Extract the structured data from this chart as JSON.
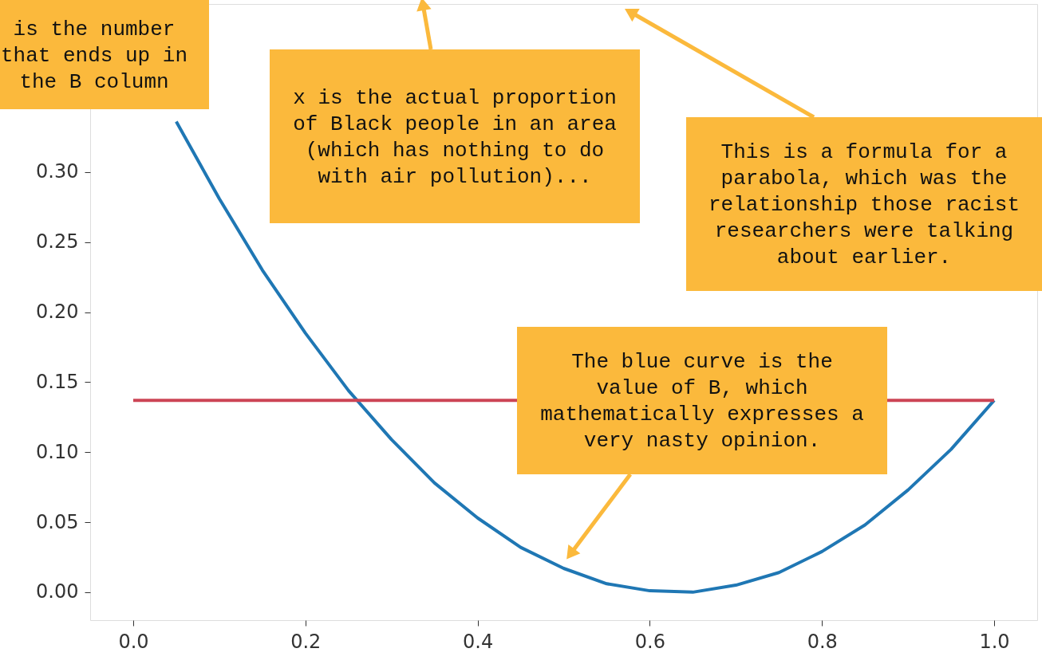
{
  "chart_data": {
    "type": "line",
    "xlim": [
      -0.05,
      1.05
    ],
    "ylim": [
      -0.02,
      0.42
    ],
    "xticks": [
      {
        "value": 0,
        "label": "0.0"
      },
      {
        "value": 0.2,
        "label": "0.2"
      },
      {
        "value": 0.4,
        "label": "0.4"
      },
      {
        "value": 0.6,
        "label": "0.6"
      },
      {
        "value": 0.8,
        "label": "0.8"
      },
      {
        "value": 1,
        "label": "1.0"
      }
    ],
    "yticks": [
      {
        "value": 0,
        "label": "0.00"
      },
      {
        "value": 0.05,
        "label": "0.05"
      },
      {
        "value": 0.1,
        "label": "0.10"
      },
      {
        "value": 0.15,
        "label": "0.15"
      },
      {
        "value": 0.2,
        "label": "0.20"
      },
      {
        "value": 0.25,
        "label": "0.25"
      },
      {
        "value": 0.3,
        "label": "0.30"
      }
    ],
    "grid": false,
    "series": [
      {
        "color": "#1f77b4",
        "x": [
          0.05,
          0.1,
          0.15,
          0.2,
          0.25,
          0.3,
          0.35,
          0.4,
          0.45,
          0.5,
          0.55,
          0.6,
          0.65,
          0.7,
          0.75,
          0.8,
          0.85,
          0.9,
          0.95,
          1.0
        ],
        "values": [
          0.336,
          0.281,
          0.23,
          0.185,
          0.144,
          0.109,
          0.078,
          0.053,
          0.032,
          0.017,
          0.006,
          0.001,
          0.0,
          0.005,
          0.014,
          0.029,
          0.048,
          0.073,
          0.102,
          0.137
        ]
      },
      {
        "color": "#cc4455",
        "x": [
          0,
          1
        ],
        "values": [
          0.137,
          0.137
        ]
      }
    ],
    "annotations": [
      "is the number\nthat ends up in\nthe B column",
      "x is the actual proportion\nof Black people in an area\n(which has nothing to do\nwith air pollution)...",
      "This is a formula for a\nparabola, which was the\nrelationship those racist\nresearchers were talking\nabout earlier.",
      "The blue curve is the\nvalue of B, which\nmathematically expresses a\nvery nasty opinion."
    ]
  }
}
